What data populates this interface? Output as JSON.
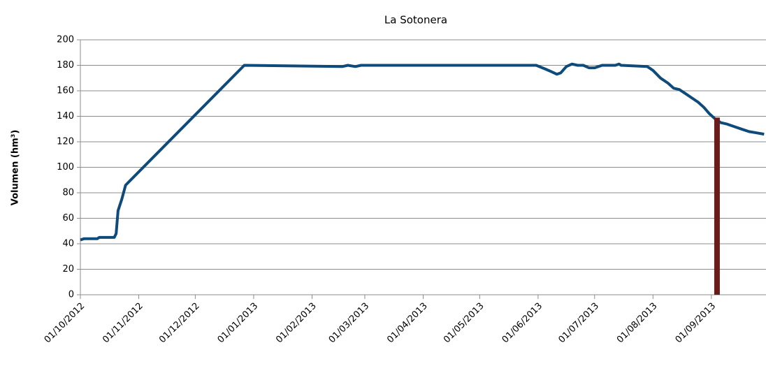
{
  "chart_data": {
    "type": "line",
    "title": "La Sotonera",
    "y_label": "Volumen (hm³)",
    "xlim": [
      "2012-10-01",
      "2013-09-30"
    ],
    "xticks": [
      {
        "value": "2012-10-01",
        "label": "01/10/2012"
      },
      {
        "value": "2012-11-01",
        "label": "01/11/2012"
      },
      {
        "value": "2012-12-01",
        "label": "01/12/2012"
      },
      {
        "value": "2013-01-01",
        "label": "01/01/2013"
      },
      {
        "value": "2013-02-01",
        "label": "01/02/2013"
      },
      {
        "value": "2013-03-01",
        "label": "01/03/2013"
      },
      {
        "value": "2013-04-01",
        "label": "01/04/2013"
      },
      {
        "value": "2013-05-01",
        "label": "01/05/2013"
      },
      {
        "value": "2013-06-01",
        "label": "01/06/2013"
      },
      {
        "value": "2013-07-01",
        "label": "01/07/2013"
      },
      {
        "value": "2013-08-01",
        "label": "01/08/2013"
      },
      {
        "value": "2013-09-01",
        "label": "01/09/2013"
      }
    ],
    "ylim": [
      0,
      200
    ],
    "yticks": [
      0,
      20,
      40,
      60,
      80,
      100,
      120,
      140,
      160,
      180,
      200
    ],
    "grid": true,
    "series": [
      {
        "type": "line",
        "color": "#0e4a7a",
        "x": [
          "2012-10-01",
          "2012-10-03",
          "2012-10-10",
          "2012-10-11",
          "2012-10-19",
          "2012-10-20",
          "2012-10-21",
          "2012-10-23",
          "2012-10-25",
          "2012-12-27",
          "2013-02-17",
          "2013-02-20",
          "2013-02-24",
          "2013-02-27",
          "2013-03-01",
          "2013-05-31",
          "2013-06-05",
          "2013-06-08",
          "2013-06-11",
          "2013-06-13",
          "2013-06-16",
          "2013-06-19",
          "2013-06-22",
          "2013-06-25",
          "2013-06-28",
          "2013-07-01",
          "2013-07-03",
          "2013-07-05",
          "2013-07-12",
          "2013-07-14",
          "2013-07-15",
          "2013-07-29",
          "2013-08-01",
          "2013-08-05",
          "2013-08-09",
          "2013-08-12",
          "2013-08-15",
          "2013-08-18",
          "2013-08-22",
          "2013-08-25",
          "2013-08-28",
          "2013-08-31",
          "2013-09-03",
          "2013-09-06",
          "2013-09-09",
          "2013-09-13",
          "2013-09-17",
          "2013-09-21",
          "2013-09-25",
          "2013-09-29"
        ],
        "values": [
          43,
          44,
          44,
          45,
          45,
          48,
          66,
          75,
          86,
          180,
          179,
          180,
          179,
          180,
          180,
          180,
          177,
          175,
          173,
          174,
          179,
          181,
          180,
          180,
          178,
          178,
          179,
          180,
          180,
          181,
          180,
          179,
          176,
          170,
          166,
          162,
          161,
          158,
          154,
          151,
          147,
          142,
          138,
          135,
          134,
          132,
          130,
          128,
          127,
          126
        ]
      },
      {
        "type": "bar",
        "color": "#6a1b1b",
        "x": [
          "2013-09-04"
        ],
        "values": [
          139
        ]
      }
    ]
  }
}
